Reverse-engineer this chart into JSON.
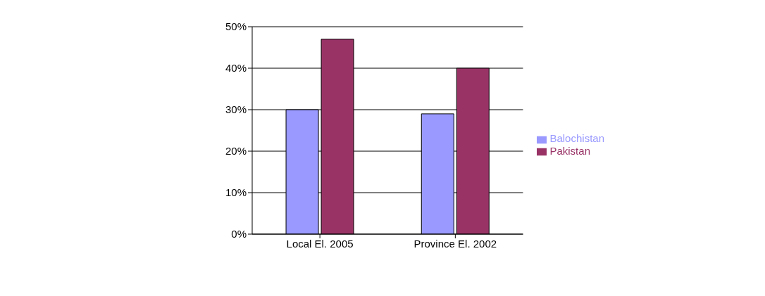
{
  "chart_data": {
    "type": "bar",
    "categories": [
      "Local El. 2005",
      "Province El. 2002"
    ],
    "series": [
      {
        "name": "Balochistan",
        "color": "#9999ff",
        "values": [
          30,
          29
        ]
      },
      {
        "name": "Pakistan",
        "color": "#993366",
        "values": [
          47,
          40
        ]
      }
    ],
    "ylim": [
      0,
      50
    ],
    "yticks": [
      {
        "value": 0,
        "label": "0%"
      },
      {
        "value": 10,
        "label": "10%"
      },
      {
        "value": 20,
        "label": "20%"
      },
      {
        "value": 30,
        "label": "30%"
      },
      {
        "value": 40,
        "label": "40%"
      },
      {
        "value": 50,
        "label": "50%"
      }
    ],
    "grid": "y",
    "legend": "right"
  }
}
